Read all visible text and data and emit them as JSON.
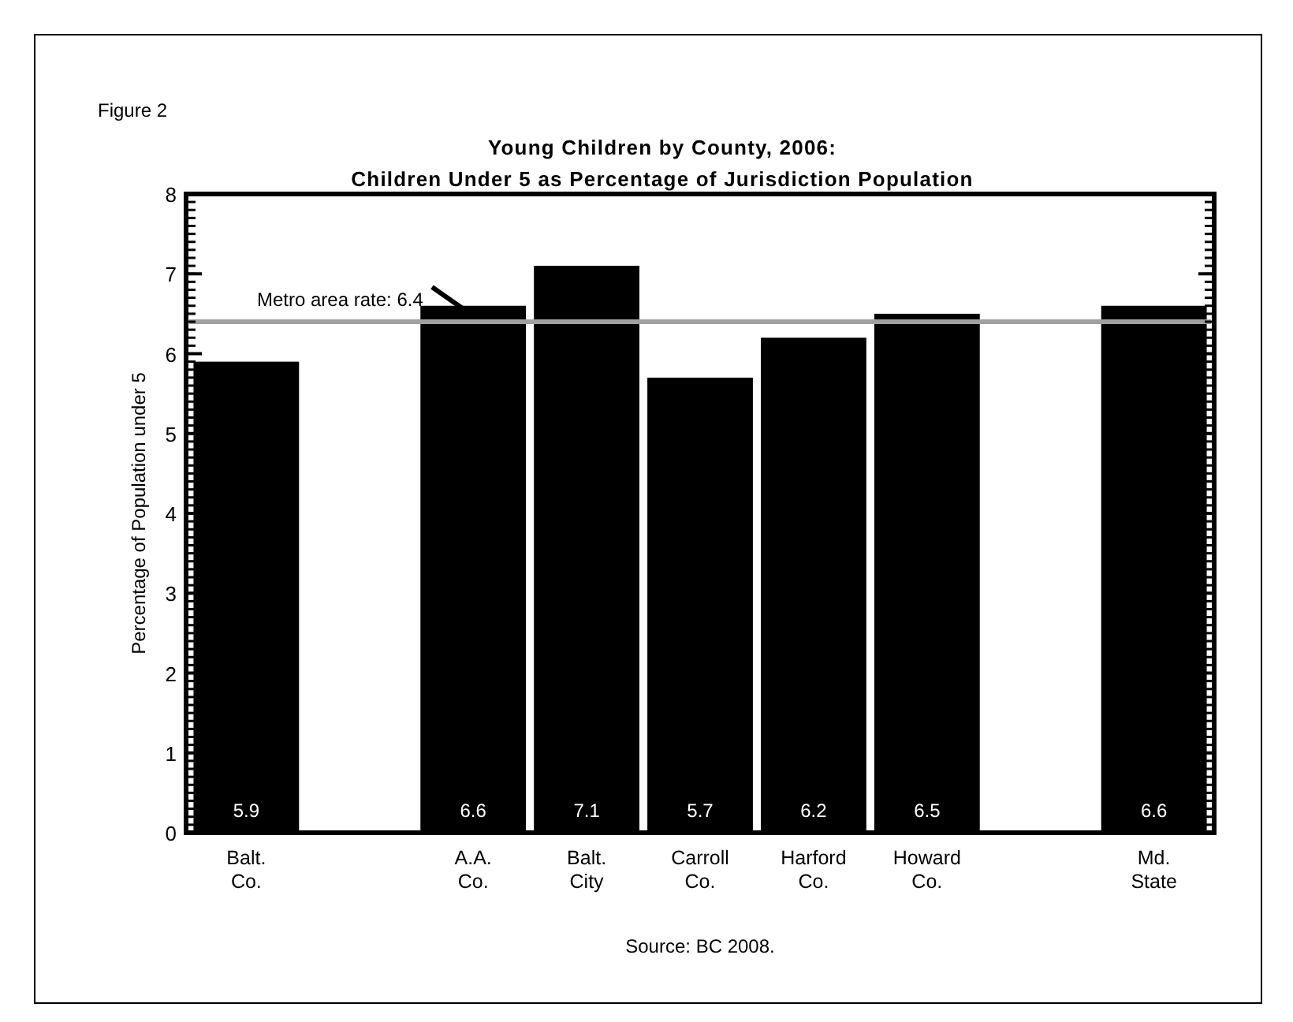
{
  "chart_data": {
    "type": "bar",
    "title": "Young Children by County, 2006:\nChildren Under 5 as Percentage of Jurisdiction Population",
    "ylabel": "Percentage of Population under 5",
    "categories": [
      "Balt. Co.",
      null,
      "A.A. Co.",
      "Balt. City",
      "Carroll Co.",
      "Harford Co.",
      "Howard Co.",
      null,
      "Md. State"
    ],
    "values": [
      5.9,
      null,
      6.6,
      7.1,
      5.7,
      6.2,
      6.5,
      null,
      6.6
    ],
    "color": "#000000",
    "ylim": [
      0,
      8
    ],
    "yticks": [
      0,
      1,
      2,
      3,
      4,
      5,
      6,
      7,
      8
    ],
    "grid": false,
    "data_labels": true,
    "ref_lines": [
      {
        "axis": "y",
        "value": 6.4,
        "label": "Metro area rate:  6.4",
        "color": "#a0a0a0"
      }
    ],
    "annotations": [
      "Figure 2",
      "Source: BC 2008."
    ]
  }
}
